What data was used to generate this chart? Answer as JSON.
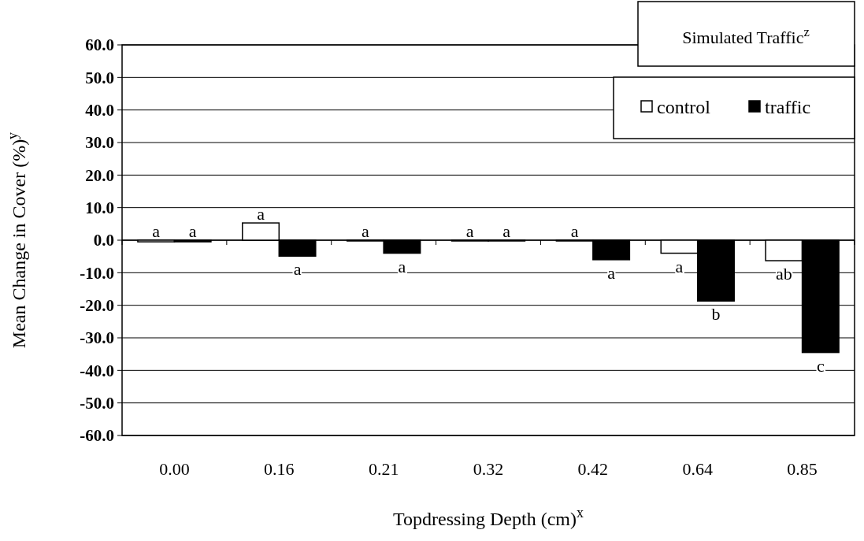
{
  "chart_data": {
    "type": "bar",
    "title": "Simulated Traffic$^{z}$",
    "xlabel": "Topdressing Depth (cm)$^{x}$",
    "ylabel": "Mean Change in Cover (%)$^{y}$",
    "categories": [
      "0.00",
      "0.16",
      "0.21",
      "0.32",
      "0.42",
      "0.64",
      "0.85"
    ],
    "series": [
      {
        "name": "control",
        "color": "#ffffff",
        "values": [
          -0.5,
          5.3,
          0,
          0,
          0,
          -4.0,
          -6.3
        ]
      },
      {
        "name": "traffic",
        "color": "#000000",
        "values": [
          -0.5,
          -4.9,
          -4.0,
          0,
          -6.0,
          -18.7,
          -34.5
        ]
      }
    ],
    "ylim": [
      -60,
      60
    ],
    "yticks": [
      {
        "value": -60,
        "label": "-60.0"
      },
      {
        "value": -50,
        "label": "-50.0"
      },
      {
        "value": -40,
        "label": "-40.0"
      },
      {
        "value": -30,
        "label": "-30.0"
      },
      {
        "value": -20,
        "label": "-20.0"
      },
      {
        "value": -10,
        "label": "-10.0"
      },
      {
        "value": 0,
        "label": "0.0"
      },
      {
        "value": 10,
        "label": "10.0"
      },
      {
        "value": 20,
        "label": "20.0"
      },
      {
        "value": 30,
        "label": "30.0"
      },
      {
        "value": 40,
        "label": "40.0"
      },
      {
        "value": 50,
        "label": "50.0"
      },
      {
        "value": 60,
        "label": "60.0"
      }
    ],
    "grid": "y",
    "legend": "top right",
    "annotations": [
      {
        "text": "a",
        "x": "0.00",
        "y": -0.5
      },
      {
        "text": "a",
        "x": "0.00",
        "y": -0.5
      },
      {
        "text": "a",
        "x": "0.16",
        "y": 5.3
      },
      {
        "text": "a",
        "x": "0.16",
        "y": -4.9
      },
      {
        "text": "a",
        "x": "0.21",
        "y": 0
      },
      {
        "text": "a",
        "x": "0.21",
        "y": -4.0
      },
      {
        "text": "a",
        "x": "0.32",
        "y": 0
      },
      {
        "text": "a",
        "x": "0.32",
        "y": 0
      },
      {
        "text": "a",
        "x": "0.42",
        "y": 0
      },
      {
        "text": "a",
        "x": "0.42",
        "y": -6.0
      },
      {
        "text": "a",
        "x": "0.64",
        "y": -4.0
      },
      {
        "text": "b",
        "x": "0.64",
        "y": -18.7
      },
      {
        "text": "ab",
        "x": "0.85",
        "y": -6.3
      },
      {
        "text": "c",
        "x": "0.85",
        "y": -34.5
      }
    ]
  }
}
